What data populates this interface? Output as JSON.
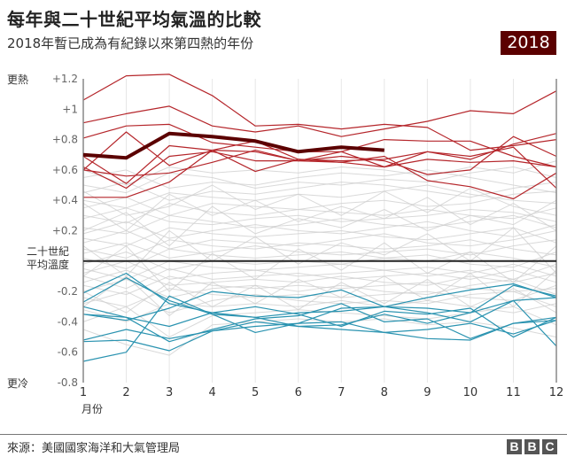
{
  "header": {
    "title": "每年與二十世紀平均氣溫的比較",
    "subtitle": "2018年暫已成為有紀錄以來第四熱的年份",
    "badge": "2018"
  },
  "footer": {
    "source": "來源：美國國家海洋和大氣管理局",
    "logo": [
      "B",
      "B",
      "C"
    ]
  },
  "chart_data": {
    "type": "line",
    "title": "每年與二十世紀平均氣溫的比較",
    "xlabel": "月份",
    "x": [
      1,
      2,
      3,
      4,
      5,
      6,
      7,
      8,
      9,
      10,
      11,
      12
    ],
    "xlim": [
      1,
      12
    ],
    "ylim": [
      -0.8,
      1.2
    ],
    "yticks": [
      {
        "value": 1.2,
        "label": "+1.2"
      },
      {
        "value": 1.0,
        "label": "+1"
      },
      {
        "value": 0.8,
        "label": "+0.8"
      },
      {
        "value": 0.6,
        "label": "+0.6"
      },
      {
        "value": 0.4,
        "label": "+0.4"
      },
      {
        "value": 0.2,
        "label": "+0.2"
      },
      {
        "value": -0.2,
        "label": "-0.2"
      },
      {
        "value": -0.4,
        "label": "-0.4"
      },
      {
        "value": -0.6,
        "label": "-0.6"
      },
      {
        "value": -0.8,
        "label": "-0.8"
      }
    ],
    "annotations": {
      "warmer": "更熱",
      "colder": "更冷",
      "baseline": [
        "二十世紀",
        "平均溫度"
      ]
    },
    "baseline_value": 0,
    "grid": "vertical",
    "colors": {
      "highlight": "#5b0000",
      "warm": "#b5262b",
      "cold": "#2a93b0",
      "other": "#d0d0d0",
      "baseline": "#222222"
    },
    "highlight": {
      "name": "2018",
      "values": [
        0.7,
        0.68,
        0.84,
        0.82,
        0.79,
        0.72,
        0.75,
        0.73
      ]
    },
    "warm_series": [
      [
        1.06,
        1.22,
        1.23,
        1.09,
        0.89,
        0.9,
        0.87,
        0.9,
        0.88,
        0.73,
        0.76,
        0.8
      ],
      [
        0.91,
        0.97,
        1.02,
        0.89,
        0.85,
        0.89,
        0.82,
        0.87,
        0.92,
        0.99,
        0.97,
        1.12
      ],
      [
        0.81,
        0.89,
        0.9,
        0.78,
        0.75,
        0.72,
        0.72,
        0.8,
        0.79,
        0.79,
        0.69,
        0.62
      ],
      [
        0.6,
        0.85,
        0.63,
        0.73,
        0.72,
        0.66,
        0.69,
        0.66,
        0.57,
        0.6,
        0.82,
        0.69
      ],
      [
        0.42,
        0.42,
        0.52,
        0.73,
        0.59,
        0.67,
        0.65,
        0.69,
        0.53,
        0.49,
        0.41,
        0.58
      ],
      [
        0.6,
        0.56,
        0.58,
        0.65,
        0.73,
        0.66,
        0.72,
        0.62,
        0.72,
        0.69,
        0.75,
        0.48
      ],
      [
        0.69,
        0.51,
        0.76,
        0.73,
        0.79,
        0.67,
        0.66,
        0.67,
        0.72,
        0.67,
        0.77,
        0.84
      ],
      [
        0.62,
        0.48,
        0.69,
        0.72,
        0.66,
        0.66,
        0.65,
        0.62,
        0.67,
        0.65,
        0.66,
        0.62
      ]
    ],
    "cold_series": [
      [
        -0.21,
        -0.08,
        -0.28,
        -0.34,
        -0.37,
        -0.34,
        -0.33,
        -0.3,
        -0.31,
        -0.34,
        -0.16,
        -0.23
      ],
      [
        -0.27,
        -0.11,
        -0.26,
        -0.35,
        -0.47,
        -0.41,
        -0.31,
        -0.3,
        -0.24,
        -0.19,
        -0.15,
        -0.24
      ],
      [
        -0.3,
        -0.37,
        -0.43,
        -0.34,
        -0.3,
        -0.35,
        -0.43,
        -0.33,
        -0.35,
        -0.31,
        -0.5,
        -0.37
      ],
      [
        -0.35,
        -0.37,
        -0.53,
        -0.45,
        -0.38,
        -0.36,
        -0.28,
        -0.4,
        -0.38,
        -0.51,
        -0.41,
        -0.37
      ],
      [
        -0.52,
        -0.45,
        -0.51,
        -0.46,
        -0.43,
        -0.41,
        -0.4,
        -0.47,
        -0.45,
        -0.41,
        -0.48,
        -0.39
      ],
      [
        -0.66,
        -0.6,
        -0.23,
        -0.35,
        -0.37,
        -0.43,
        -0.45,
        -0.47,
        -0.51,
        -0.52,
        -0.41,
        -0.39
      ],
      [
        -0.53,
        -0.52,
        -0.59,
        -0.46,
        -0.4,
        -0.43,
        -0.42,
        -0.35,
        -0.41,
        -0.34,
        -0.26,
        -0.56
      ],
      [
        -0.35,
        -0.39,
        -0.31,
        -0.2,
        -0.23,
        -0.24,
        -0.19,
        -0.3,
        -0.34,
        -0.4,
        -0.26,
        -0.24
      ]
    ],
    "other_series": [
      [
        0.55,
        0.6,
        0.48,
        0.52,
        0.5,
        0.55,
        0.58,
        0.56,
        0.6,
        0.55,
        0.5,
        0.45
      ],
      [
        0.5,
        0.45,
        0.58,
        0.55,
        0.48,
        0.52,
        0.5,
        0.54,
        0.52,
        0.58,
        0.62,
        0.55
      ],
      [
        0.45,
        0.52,
        0.4,
        0.46,
        0.44,
        0.48,
        0.52,
        0.5,
        0.46,
        0.42,
        0.48,
        0.52
      ],
      [
        0.4,
        0.35,
        0.45,
        0.42,
        0.4,
        0.44,
        0.42,
        0.46,
        0.5,
        0.44,
        0.4,
        0.38
      ],
      [
        0.35,
        0.42,
        0.3,
        0.38,
        0.36,
        0.34,
        0.38,
        0.4,
        0.36,
        0.38,
        0.44,
        0.46
      ],
      [
        0.3,
        0.25,
        0.38,
        0.32,
        0.3,
        0.34,
        0.32,
        0.3,
        0.34,
        0.3,
        0.28,
        0.35
      ],
      [
        0.28,
        0.35,
        0.26,
        0.24,
        0.28,
        0.3,
        0.26,
        0.28,
        0.3,
        0.34,
        0.32,
        0.26
      ],
      [
        0.22,
        0.18,
        0.3,
        0.26,
        0.22,
        0.24,
        0.28,
        0.24,
        0.22,
        0.26,
        0.3,
        0.22
      ],
      [
        0.18,
        0.26,
        0.15,
        0.2,
        0.24,
        0.2,
        0.18,
        0.22,
        0.26,
        0.2,
        0.16,
        0.24
      ],
      [
        0.15,
        0.1,
        0.22,
        0.18,
        0.16,
        0.18,
        0.2,
        0.16,
        0.14,
        0.18,
        0.22,
        0.12
      ],
      [
        0.12,
        0.2,
        0.08,
        0.14,
        0.12,
        0.1,
        0.14,
        0.18,
        0.12,
        0.1,
        0.14,
        0.2
      ],
      [
        0.08,
        0.02,
        0.14,
        0.1,
        0.08,
        0.12,
        0.1,
        0.08,
        0.1,
        0.14,
        0.08,
        0.04
      ],
      [
        0.05,
        0.12,
        0.02,
        0.06,
        0.1,
        0.06,
        0.04,
        0.06,
        0.08,
        0.04,
        0.1,
        0.14
      ],
      [
        0.02,
        -0.05,
        0.08,
        0.04,
        0.02,
        0.04,
        0.06,
        0.02,
        0.0,
        0.06,
        0.02,
        -0.04
      ],
      [
        -0.02,
        0.06,
        -0.06,
        0.0,
        -0.02,
        0.0,
        -0.02,
        0.02,
        0.04,
        -0.02,
        -0.04,
        0.06
      ],
      [
        -0.05,
        -0.12,
        0.0,
        -0.04,
        -0.06,
        -0.04,
        -0.02,
        -0.06,
        -0.04,
        -0.08,
        -0.02,
        -0.1
      ],
      [
        -0.08,
        0.0,
        -0.12,
        -0.08,
        -0.06,
        -0.1,
        -0.08,
        -0.06,
        -0.1,
        -0.06,
        -0.12,
        -0.02
      ],
      [
        -0.1,
        -0.18,
        -0.05,
        -0.12,
        -0.1,
        -0.08,
        -0.12,
        -0.1,
        -0.08,
        -0.12,
        -0.06,
        -0.14
      ],
      [
        -0.14,
        -0.06,
        -0.16,
        -0.14,
        -0.12,
        -0.14,
        -0.1,
        -0.14,
        -0.16,
        -0.1,
        -0.14,
        -0.08
      ],
      [
        -0.16,
        -0.22,
        -0.1,
        -0.16,
        -0.18,
        -0.16,
        -0.18,
        -0.16,
        -0.14,
        -0.18,
        -0.2,
        -0.18
      ],
      [
        -0.2,
        -0.12,
        -0.24,
        -0.18,
        -0.16,
        -0.2,
        -0.16,
        -0.2,
        -0.22,
        -0.16,
        -0.12,
        -0.22
      ],
      [
        -0.24,
        -0.3,
        -0.18,
        -0.22,
        -0.24,
        -0.22,
        -0.24,
        -0.22,
        -0.2,
        -0.24,
        -0.26,
        -0.16
      ],
      [
        -0.28,
        -0.2,
        -0.34,
        -0.26,
        -0.22,
        -0.26,
        -0.28,
        -0.26,
        -0.28,
        -0.22,
        -0.2,
        -0.3
      ],
      [
        -0.32,
        -0.4,
        -0.28,
        -0.3,
        -0.28,
        -0.3,
        -0.26,
        -0.3,
        -0.26,
        -0.3,
        -0.34,
        -0.28
      ],
      [
        -0.4,
        -0.3,
        -0.5,
        -0.36,
        -0.34,
        -0.32,
        -0.34,
        -0.36,
        -0.38,
        -0.34,
        -0.3,
        -0.42
      ],
      [
        -0.45,
        -0.55,
        -0.62,
        -0.42,
        -0.4,
        -0.38,
        -0.4,
        -0.38,
        -0.42,
        -0.4,
        -0.44,
        -0.5
      ],
      [
        0.6,
        0.5,
        0.62,
        0.58,
        0.6,
        0.58,
        0.62,
        0.6,
        0.56,
        0.62,
        0.58,
        0.66
      ],
      [
        0.2,
        0.32,
        0.1,
        0.36,
        0.18,
        0.28,
        0.22,
        0.34,
        0.2,
        0.3,
        0.24,
        0.4
      ],
      [
        -0.1,
        0.1,
        -0.2,
        0.05,
        -0.12,
        0.08,
        -0.06,
        0.12,
        -0.08,
        0.06,
        -0.14,
        0.1
      ],
      [
        0.38,
        0.2,
        0.44,
        0.3,
        0.4,
        0.26,
        0.36,
        0.28,
        0.42,
        0.24,
        0.38,
        0.2
      ],
      [
        -0.3,
        -0.1,
        -0.36,
        -0.14,
        -0.28,
        -0.12,
        -0.24,
        -0.1,
        -0.26,
        -0.08,
        -0.3,
        -0.06
      ],
      [
        0.1,
        -0.1,
        0.2,
        0.0,
        0.16,
        -0.02,
        0.12,
        0.04,
        0.18,
        0.0,
        0.22,
        -0.08
      ],
      [
        0.46,
        0.3,
        0.36,
        0.5,
        0.34,
        0.44,
        0.3,
        0.46,
        0.32,
        0.48,
        0.36,
        0.3
      ],
      [
        -0.2,
        -0.34,
        -0.14,
        -0.3,
        -0.16,
        -0.32,
        -0.14,
        -0.28,
        -0.12,
        -0.3,
        -0.18,
        -0.34
      ]
    ]
  }
}
